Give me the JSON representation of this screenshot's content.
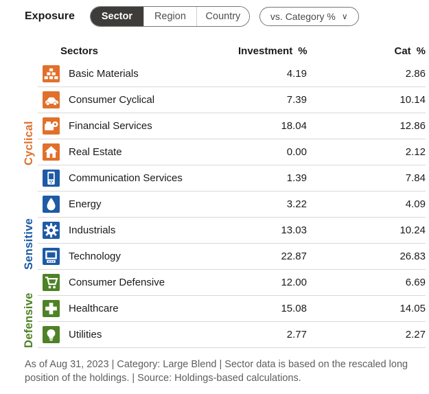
{
  "header": {
    "title": "Exposure",
    "tabs": [
      {
        "label": "Sector",
        "active": true
      },
      {
        "label": "Region",
        "active": false
      },
      {
        "label": "Country",
        "active": false
      }
    ],
    "dropdown": {
      "label": "vs. Category %",
      "chevron_icon": "∨"
    }
  },
  "table": {
    "columns": {
      "sectors": "Sectors",
      "investment": "Investment",
      "investment_pct": "%",
      "cat": "Cat",
      "cat_pct": "%"
    },
    "groups": [
      {
        "name": "Cyclical",
        "color": "#e0702b",
        "rows": [
          {
            "sector": "Basic Materials",
            "icon": "basic-materials-icon",
            "investment": "4.19",
            "cat": "2.86"
          },
          {
            "sector": "Consumer Cyclical",
            "icon": "consumer-cyclical-icon",
            "investment": "7.39",
            "cat": "10.14"
          },
          {
            "sector": "Financial Services",
            "icon": "financial-services-icon",
            "investment": "18.04",
            "cat": "12.86"
          },
          {
            "sector": "Real Estate",
            "icon": "real-estate-icon",
            "investment": "0.00",
            "cat": "2.12"
          }
        ]
      },
      {
        "name": "Sensitive",
        "color": "#1e5aa5",
        "rows": [
          {
            "sector": "Communication Services",
            "icon": "communication-services-icon",
            "investment": "1.39",
            "cat": "7.84"
          },
          {
            "sector": "Energy",
            "icon": "energy-icon",
            "investment": "3.22",
            "cat": "4.09"
          },
          {
            "sector": "Industrials",
            "icon": "industrials-icon",
            "investment": "13.03",
            "cat": "10.24"
          },
          {
            "sector": "Technology",
            "icon": "technology-icon",
            "investment": "22.87",
            "cat": "26.83"
          }
        ]
      },
      {
        "name": "Defensive",
        "color": "#4e8226",
        "rows": [
          {
            "sector": "Consumer Defensive",
            "icon": "consumer-defensive-icon",
            "investment": "12.00",
            "cat": "6.69"
          },
          {
            "sector": "Healthcare",
            "icon": "healthcare-icon",
            "investment": "15.08",
            "cat": "14.05"
          },
          {
            "sector": "Utilities",
            "icon": "utilities-icon",
            "investment": "2.77",
            "cat": "2.27"
          }
        ]
      }
    ]
  },
  "footer": {
    "text": "As of Aug 31, 2023 | Category: Large Blend | Sector data is based on the rescaled long position of the holdings. | Source: Holdings-based calculations."
  }
}
